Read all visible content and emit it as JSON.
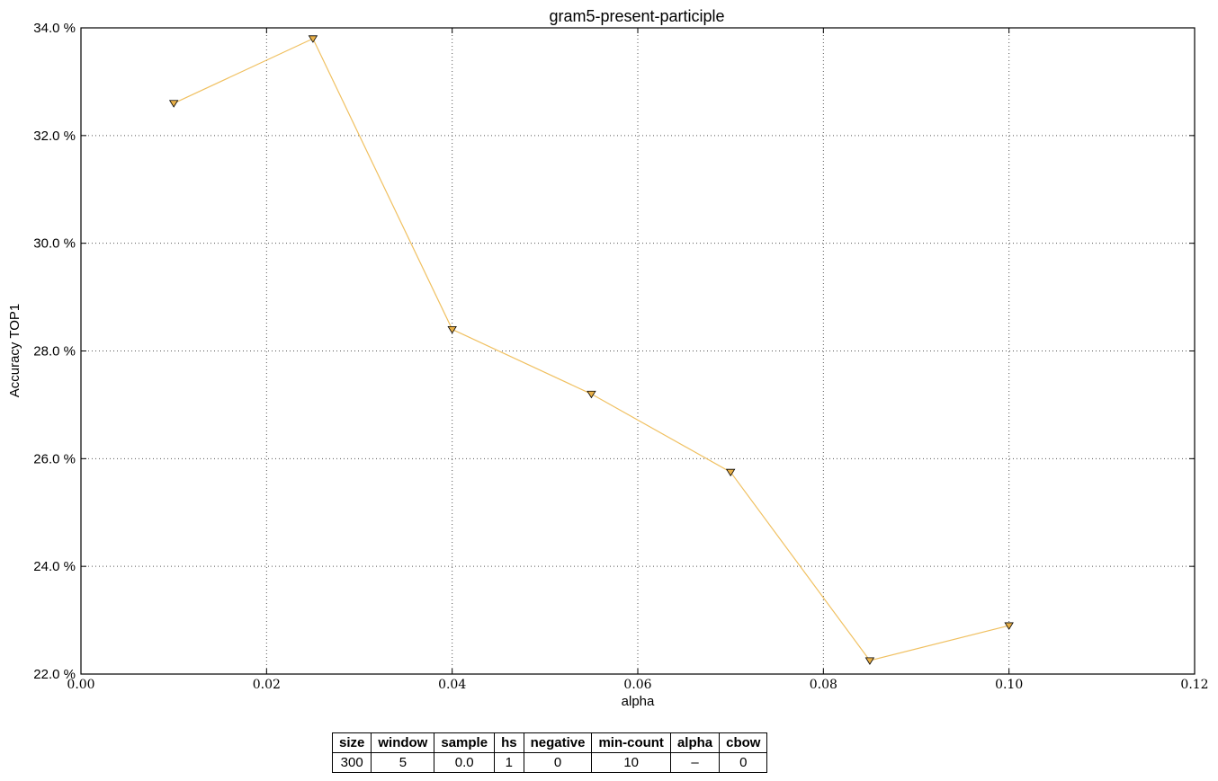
{
  "chart_data": {
    "type": "line",
    "title": "gram5-present-participle",
    "xlabel": "alpha",
    "ylabel": "Accuracy TOP1",
    "xlim": [
      0.0,
      0.12
    ],
    "ylim": [
      22.0,
      34.0
    ],
    "xticks": [
      "0.00",
      "0.02",
      "0.04",
      "0.06",
      "0.08",
      "0.10",
      "0.12"
    ],
    "yticks": [
      "22.0 %",
      "24.0 %",
      "26.0 %",
      "28.0 %",
      "30.0 %",
      "32.0 %",
      "34.0 %"
    ],
    "grid": true,
    "series": [
      {
        "color": "#f0c060",
        "marker": "triangle-down",
        "marker_color": "#e8b048",
        "x": [
          0.01,
          0.025,
          0.04,
          0.055,
          0.07,
          0.085,
          0.1
        ],
        "y": [
          32.6,
          33.8,
          28.4,
          27.2,
          25.75,
          22.25,
          22.9
        ]
      }
    ]
  },
  "param_table": {
    "headers": [
      "size",
      "window",
      "sample",
      "hs",
      "negative",
      "min-count",
      "alpha",
      "cbow"
    ],
    "values": [
      "300",
      "5",
      "0.0",
      "1",
      "0",
      "10",
      "–",
      "0"
    ]
  }
}
